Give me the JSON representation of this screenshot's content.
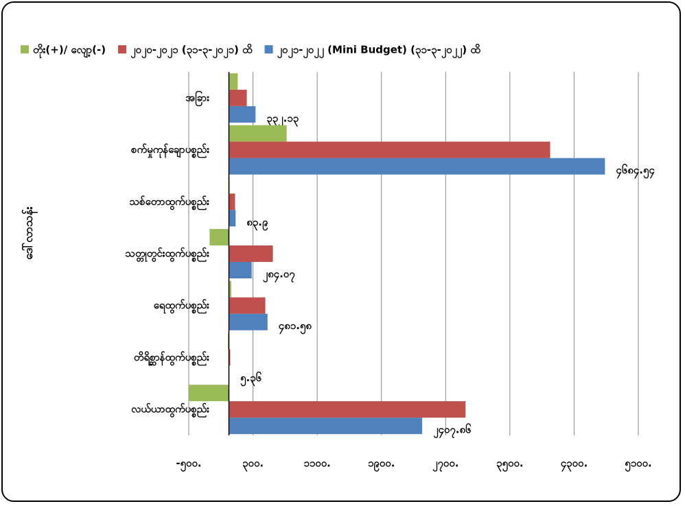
{
  "chart_data": {
    "type": "barh",
    "y_axis_label": "ဒေါ်လာသန်း",
    "categories": [
      "အခြား",
      "စက်မှုကုန်ချောပစ္စည်း",
      "သစ်တောထွက်ပစ္စည်း",
      "သတ္တုတွင်းထွက်ပစ္စည်း",
      "ရေထွက်ပစ္စည်း",
      "တိရိစ္ဆာန်ထွက်ပစ္စည်း",
      "လယ်ယာထွက်ပစ္စည်း"
    ],
    "series": [
      {
        "name": "တိုး(+)/ လျော့(-)",
        "color": "#9bbb59",
        "values": [
          110,
          720,
          10,
          -240,
          30,
          -12,
          -500
        ]
      },
      {
        "name": "၂၀၂၀-၂၀၂၁ (၃၁-၃-၂၀၂၁) ထိ",
        "color": "#c0504d",
        "values": [
          223,
          4002,
          77,
          548,
          454,
          17,
          2948
        ]
      },
      {
        "name": "၂၀၂၁-၂၀၂၂ (Mini Budget) (၃၁-၃-၂၀၂၂) ထိ",
        "color": "#4f81bd",
        "values": [
          332.13,
          4684.54,
          83.9,
          284.07,
          481.58,
          5.36,
          2407.86
        ],
        "value_labels": [
          "၃၃၂.၁၃",
          "၄၆၈၄.၅၄",
          "၈၃.၉",
          "၂၈၄.၀၇",
          "၄၈၁.၅၈",
          "၅.၃၆",
          "၂၄၀၇.၈၆"
        ]
      }
    ],
    "xlim": [
      -500,
      5100
    ],
    "xticks": [
      {
        "value": -500,
        "label": "-၅၀၀."
      },
      {
        "value": 300,
        "label": "၃၀၀."
      },
      {
        "value": 1100,
        "label": "၁၁၀၀."
      },
      {
        "value": 1900,
        "label": "၁၉၀၀."
      },
      {
        "value": 2700,
        "label": "၂၇၀၀."
      },
      {
        "value": 3500,
        "label": "၃၅၀၀."
      },
      {
        "value": 4300,
        "label": "၄၃၀၀."
      },
      {
        "value": 5100,
        "label": "၅၁၀၀."
      }
    ],
    "grid": true,
    "legend": "top"
  }
}
